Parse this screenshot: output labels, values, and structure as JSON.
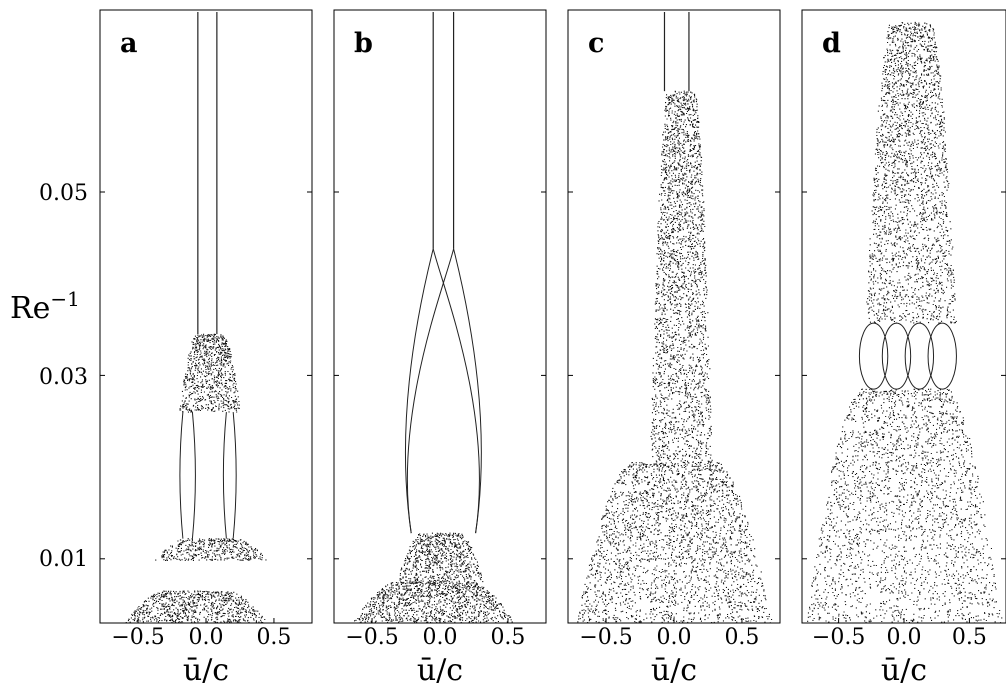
{
  "chart_data": {
    "type": "scatter",
    "ylabel": "Re⁻¹",
    "xlabel": "ū/c",
    "xlim": [
      -0.78,
      0.78
    ],
    "ylim": [
      0.003,
      0.07
    ],
    "x_ticks": [
      -0.5,
      0.0,
      0.5
    ],
    "x_tick_labels": [
      "−0.5",
      "0.0",
      "0.5"
    ],
    "y_ticks": [
      0.01,
      0.03,
      0.05
    ],
    "y_tick_labels": [
      "0.01",
      "0.03",
      "0.05"
    ],
    "grid": false,
    "panels": [
      {
        "label": "a",
        "regions": [
          {
            "kind": "cloud",
            "y_range": [
              0.003,
              0.0065
            ],
            "x_range": [
              -0.6,
              0.45
            ]
          },
          {
            "kind": "cloud",
            "y_range": [
              0.0098,
              0.0122
            ],
            "x_range": [
              -0.38,
              0.45
            ]
          },
          {
            "kind": "branches",
            "y_range": [
              0.0122,
              0.026
            ],
            "x_positions": [
              -0.17,
              -0.1,
              0.15,
              0.2
            ]
          },
          {
            "kind": "cloud",
            "y_range": [
              0.026,
              0.0345
            ],
            "x_range": [
              -0.2,
              0.25
            ]
          },
          {
            "kind": "pair",
            "y_range": [
              0.0345,
              0.07
            ],
            "x_positions": [
              -0.06,
              0.08
            ]
          }
        ]
      },
      {
        "label": "b",
        "regions": [
          {
            "kind": "cloud",
            "y_range": [
              0.003,
              0.0075
            ],
            "x_range": [
              -0.65,
              0.55
            ]
          },
          {
            "kind": "cloud",
            "y_range": [
              0.0075,
              0.0128
            ],
            "x_range": [
              -0.32,
              0.32
            ]
          },
          {
            "kind": "arcs",
            "y_range": [
              0.0128,
              0.0438
            ],
            "x_positions": [
              -0.05,
              0.1
            ]
          },
          {
            "kind": "pair",
            "y_range": [
              0.0438,
              0.07
            ],
            "x_positions": [
              -0.05,
              0.1
            ]
          }
        ]
      },
      {
        "label": "c",
        "regions": [
          {
            "kind": "cloud",
            "y_range": [
              0.003,
              0.0205
            ],
            "x_range": [
              -0.72,
              0.72
            ]
          },
          {
            "kind": "cloud",
            "y_range": [
              0.0205,
              0.061
            ],
            "x_range": [
              -0.18,
              0.28
            ]
          },
          {
            "kind": "pair",
            "y_range": [
              0.061,
              0.07
            ],
            "x_positions": [
              -0.07,
              0.11
            ]
          }
        ]
      },
      {
        "label": "d",
        "regions": [
          {
            "kind": "cloud",
            "y_range": [
              0.003,
              0.0285
            ],
            "x_range": [
              -0.75,
              0.75
            ]
          },
          {
            "kind": "loops",
            "y_range": [
              0.0285,
              0.0357
            ],
            "x_range": [
              -0.32,
              0.38
            ]
          },
          {
            "kind": "cloud",
            "y_range": [
              0.0357,
              0.0685
            ],
            "x_range": [
              -0.3,
              0.4
            ]
          }
        ]
      }
    ]
  }
}
